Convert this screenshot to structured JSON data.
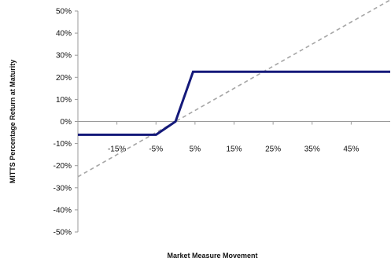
{
  "chart_data": {
    "type": "line",
    "xlabel": "Market Measure Movement",
    "ylabel": "MITTS Percentage Return at Maturity",
    "xlim": [
      -25,
      55
    ],
    "ylim": [
      -50,
      50
    ],
    "y_ticks": [
      50,
      40,
      30,
      20,
      10,
      0,
      -10,
      -20,
      -30,
      -40,
      -50
    ],
    "y_tick_labels": [
      "50%",
      "40%",
      "30%",
      "20%",
      "10%",
      "0%",
      "-10%",
      "-20%",
      "-30%",
      "-40%",
      "-50%"
    ],
    "x_ticks": [
      -15,
      -5,
      5,
      15,
      25,
      35,
      45
    ],
    "x_tick_labels": [
      "-15%",
      "-5%",
      "5%",
      "15%",
      "25%",
      "35%",
      "45%"
    ],
    "grid": false,
    "series": [
      {
        "style": "solid",
        "color": "#14197a",
        "x": [
          -25,
          -5,
          0,
          4.5,
          55
        ],
        "y": [
          -6,
          -6,
          0,
          22.5,
          22.5
        ]
      },
      {
        "style": "dashed",
        "color": "#a6a6a6",
        "x": [
          -25,
          55
        ],
        "y": [
          -25,
          55
        ]
      }
    ]
  }
}
